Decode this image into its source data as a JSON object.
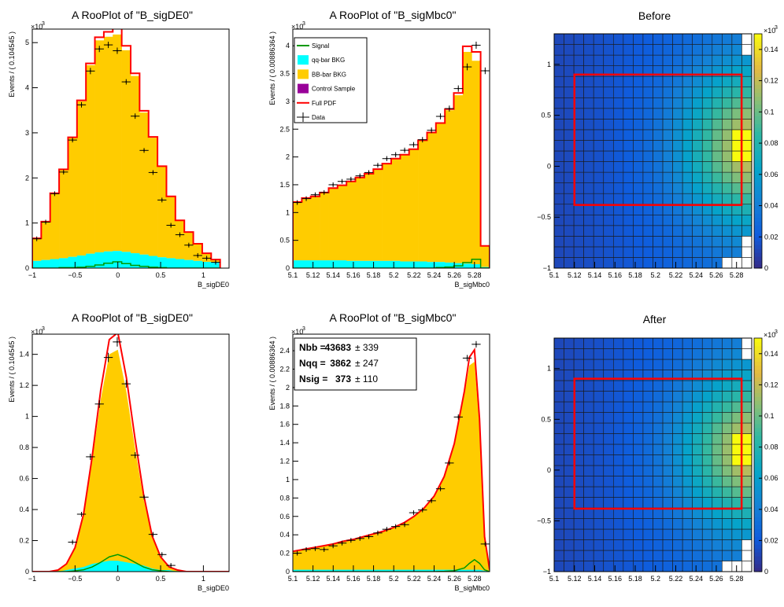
{
  "colors": {
    "signal": "#009900",
    "qq": "#00ffff",
    "bb": "#ffcc00",
    "control": "#990099",
    "pdf": "#ff0000",
    "data": "#000000",
    "box": "#ff0000"
  },
  "chart_data": [
    {
      "id": "de-before",
      "type": "histogram",
      "title": "A RooPlot of \"B_sigDE0\"",
      "xlabel": "B_sigDE0",
      "ylabel": "Events / ( 0.104545 )",
      "exponent_label": "×10",
      "exponent_sup": "3",
      "xlim": [
        -1.0,
        1.3
      ],
      "ylim": [
        0,
        5.3
      ],
      "xticks": [
        -1,
        -0.5,
        0,
        0.5,
        1
      ],
      "xtick_labels": [
        "−1",
        "−0.5",
        "0",
        "0.5",
        "1"
      ],
      "yticks": [
        0,
        1,
        2,
        3,
        4,
        5
      ],
      "ytick_labels": [
        "0",
        "1",
        "2",
        "3",
        "4",
        "5"
      ],
      "bin_edges": [
        -1.0,
        -0.8955,
        -0.7909,
        -0.6864,
        -0.5818,
        -0.4773,
        -0.3727,
        -0.2682,
        -0.1636,
        -0.0591,
        0.0455,
        0.15,
        0.2545,
        0.3591,
        0.4636,
        0.5682,
        0.6727,
        0.7773,
        0.8818,
        0.9864,
        1.0909,
        1.1955
      ],
      "stack_bb": [
        0.5,
        0.85,
        1.46,
        1.96,
        2.64,
        3.42,
        4.18,
        4.7,
        4.76,
        4.8,
        4.47,
        3.93,
        3.15,
        2.62,
        2.01,
        1.37,
        0.86,
        0.62,
        0.38,
        0.19,
        0.07
      ],
      "stack_qq": [
        0.16,
        0.18,
        0.2,
        0.22,
        0.25,
        0.28,
        0.32,
        0.35,
        0.37,
        0.38,
        0.36,
        0.33,
        0.3,
        0.27,
        0.24,
        0.22,
        0.2,
        0.18,
        0.16,
        0.14,
        0.12
      ],
      "signal": [
        0,
        0,
        0,
        0.01,
        0.01,
        0.02,
        0.04,
        0.07,
        0.11,
        0.14,
        0.1,
        0.06,
        0.04,
        0.02,
        0.01,
        0,
        0,
        0,
        0,
        0,
        0
      ],
      "data_x": [
        -0.9477,
        -0.8432,
        -0.7386,
        -0.6341,
        -0.5295,
        -0.425,
        -0.3205,
        -0.2159,
        -0.1114,
        -0.0068,
        0.0977,
        0.2023,
        0.3068,
        0.4114,
        0.5159,
        0.6205,
        0.725,
        0.8295,
        0.9341,
        1.0386,
        1.1432
      ],
      "data_y": [
        0.65,
        1.02,
        1.65,
        2.13,
        2.84,
        3.62,
        4.37,
        4.86,
        4.95,
        4.82,
        4.13,
        3.37,
        2.61,
        2.12,
        1.51,
        0.95,
        0.74,
        0.51,
        0.28,
        0.22,
        0.13
      ],
      "data_err": [
        0.03,
        0.03,
        0.04,
        0.05,
        0.05,
        0.06,
        0.07,
        0.07,
        0.07,
        0.07,
        0.06,
        0.06,
        0.05,
        0.05,
        0.04,
        0.03,
        0.03,
        0.02,
        0.02,
        0.02,
        0.01
      ]
    },
    {
      "id": "mbc-before",
      "type": "histogram",
      "title": "A RooPlot of \"B_sigMbc0\"",
      "xlabel": "B_sigMbc0",
      "ylabel": "Events / ( 0.00886364 )",
      "exponent_label": "×10",
      "exponent_sup": "3",
      "xlim": [
        5.1,
        5.295
      ],
      "ylim": [
        0,
        4.3
      ],
      "xticks": [
        5.1,
        5.12,
        5.14,
        5.16,
        5.18,
        5.2,
        5.22,
        5.24,
        5.26,
        5.28
      ],
      "xtick_labels": [
        "5.1",
        "5.12",
        "5.14",
        "5.16",
        "5.18",
        "5.2",
        "5.22",
        "5.24",
        "5.26",
        "5.28"
      ],
      "yticks": [
        0,
        0.5,
        1,
        1.5,
        2,
        2.5,
        3,
        3.5,
        4
      ],
      "ytick_labels": [
        "0",
        "0.5",
        "1",
        "1.5",
        "2",
        "2.5",
        "3",
        "3.5",
        "4"
      ],
      "bin_edges": [
        5.1,
        5.1089,
        5.1177,
        5.1266,
        5.1355,
        5.1443,
        5.1532,
        5.162,
        5.1709,
        5.1798,
        5.1886,
        5.1975,
        5.2064,
        5.2152,
        5.2241,
        5.233,
        5.2418,
        5.2507,
        5.2595,
        5.2684,
        5.2773,
        5.2861,
        5.295
      ],
      "stack_bb": [
        1.05,
        1.12,
        1.15,
        1.22,
        1.3,
        1.35,
        1.43,
        1.5,
        1.57,
        1.65,
        1.75,
        1.84,
        1.92,
        2.02,
        2.18,
        2.33,
        2.49,
        2.74,
        3.02,
        3.81,
        3.66,
        0.38
      ],
      "stack_qq": [
        0.14,
        0.14,
        0.14,
        0.14,
        0.14,
        0.14,
        0.13,
        0.13,
        0.13,
        0.13,
        0.13,
        0.13,
        0.12,
        0.12,
        0.12,
        0.11,
        0.11,
        0.1,
        0.09,
        0.08,
        0.07,
        0.02
      ],
      "signal": [
        0,
        0,
        0,
        0,
        0,
        0,
        0,
        0,
        0,
        0,
        0,
        0,
        0,
        0,
        0,
        0,
        0.01,
        0.02,
        0.04,
        0.1,
        0.16,
        0
      ],
      "data_x": [
        5.1044,
        5.1133,
        5.1222,
        5.131,
        5.1399,
        5.1488,
        5.1576,
        5.1665,
        5.1753,
        5.1842,
        5.1931,
        5.2019,
        5.2108,
        5.2197,
        5.2285,
        5.2374,
        5.2463,
        5.2551,
        5.264,
        5.2728,
        5.2817,
        5.2906
      ],
      "data_y": [
        1.18,
        1.25,
        1.32,
        1.36,
        1.5,
        1.56,
        1.6,
        1.66,
        1.72,
        1.85,
        1.97,
        2.04,
        2.12,
        2.22,
        2.31,
        2.48,
        2.73,
        2.87,
        3.23,
        3.62,
        4.01,
        3.55
      ],
      "data_err": [
        0.035,
        0.035,
        0.036,
        0.037,
        0.039,
        0.04,
        0.04,
        0.041,
        0.042,
        0.043,
        0.045,
        0.046,
        0.047,
        0.048,
        0.049,
        0.05,
        0.053,
        0.054,
        0.057,
        0.061,
        0.064,
        0.06
      ],
      "legend": {
        "placement": "top-left",
        "entries": [
          {
            "label": "Signal",
            "kind": "line",
            "color": "#009900"
          },
          {
            "label": "qq-bar BKG",
            "kind": "fill",
            "color": "#00ffff"
          },
          {
            "label": "BB-bar BKG",
            "kind": "fill",
            "color": "#ffcc00"
          },
          {
            "label": "Control Sample",
            "kind": "fill",
            "color": "#990099"
          },
          {
            "label": "Full PDF",
            "kind": "line",
            "color": "#ff0000"
          },
          {
            "label": "Data",
            "kind": "marker",
            "color": "#000000"
          }
        ]
      }
    },
    {
      "id": "map-before",
      "type": "heatmap",
      "title": "Before",
      "xlim": [
        5.1,
        5.295
      ],
      "ylim": [
        -1.0,
        1.3
      ],
      "xticks": [
        5.1,
        5.12,
        5.14,
        5.16,
        5.18,
        5.2,
        5.22,
        5.24,
        5.26,
        5.28
      ],
      "xtick_labels": [
        "5.1",
        "5.12",
        "5.14",
        "5.16",
        "5.18",
        "5.2",
        "5.22",
        "5.24",
        "5.26",
        "5.28"
      ],
      "yticks": [
        -1,
        -0.5,
        0,
        0.5,
        1
      ],
      "ytick_labels": [
        "−1",
        "−0.5",
        "0",
        "0.5",
        "1"
      ],
      "zlim": [
        0,
        0.15
      ],
      "zticks": [
        0,
        0.02,
        0.04,
        0.06,
        0.08,
        0.1,
        0.12,
        0.14
      ],
      "ztick_labels": [
        "0",
        "0.02",
        "0.04",
        "0.06",
        "0.08",
        "0.1",
        "0.12",
        "0.14"
      ],
      "z_exponent_label": "×10",
      "z_exponent_sup": "3",
      "nx": 20,
      "ny": 22,
      "box": {
        "x": [
          5.12,
          5.285
        ],
        "y": [
          -0.38,
          0.9
        ]
      }
    },
    {
      "id": "de-after",
      "type": "histogram",
      "title": "A RooPlot of \"B_sigDE0\"",
      "xlabel": "B_sigDE0",
      "ylabel": "Events / ( 0.104545 )",
      "exponent_label": "×10",
      "exponent_sup": "3",
      "xlim": [
        -1.0,
        1.3
      ],
      "ylim": [
        0,
        1.53
      ],
      "xticks": [
        -1,
        -0.5,
        0,
        0.5,
        1
      ],
      "xtick_labels": [
        "−1",
        "−0.5",
        "0",
        "0.5",
        "1"
      ],
      "yticks": [
        0,
        0.2,
        0.4,
        0.6,
        0.8,
        1,
        1.2,
        1.4
      ],
      "ytick_labels": [
        "0",
        "0.2",
        "0.4",
        "0.6",
        "0.8",
        "1",
        "1.2",
        "1.4"
      ],
      "curve_x": [
        -1.0,
        -0.9,
        -0.8,
        -0.7,
        -0.6,
        -0.5,
        -0.4,
        -0.3,
        -0.2,
        -0.1,
        0.0,
        0.1,
        0.2,
        0.3,
        0.4,
        0.5,
        0.6,
        0.7,
        0.8,
        0.9,
        1.0,
        1.1,
        1.2,
        1.3
      ],
      "curve_bb": [
        0,
        0,
        0,
        0.01,
        0.04,
        0.13,
        0.33,
        0.66,
        1.05,
        1.33,
        1.36,
        1.1,
        0.75,
        0.43,
        0.2,
        0.08,
        0.02,
        0.01,
        0,
        0,
        0,
        0,
        0,
        0
      ],
      "curve_qq": [
        0,
        0,
        0,
        0,
        0.01,
        0.02,
        0.03,
        0.05,
        0.06,
        0.07,
        0.07,
        0.06,
        0.05,
        0.04,
        0.02,
        0.01,
        0.01,
        0,
        0,
        0,
        0,
        0,
        0,
        0
      ],
      "curve_sig": [
        0,
        0,
        0,
        0,
        0,
        0.005,
        0.012,
        0.03,
        0.06,
        0.095,
        0.11,
        0.09,
        0.06,
        0.03,
        0.012,
        0.005,
        0,
        0,
        0,
        0,
        0,
        0,
        0,
        0
      ],
      "data_x": [
        -0.5295,
        -0.425,
        -0.3205,
        -0.2159,
        -0.1114,
        -0.0068,
        0.0977,
        0.2023,
        0.3068,
        0.4114,
        0.5159,
        0.6205
      ],
      "data_y": [
        0.19,
        0.37,
        0.74,
        1.08,
        1.38,
        1.48,
        1.21,
        0.75,
        0.48,
        0.24,
        0.11,
        0.04
      ],
      "data_err": [
        0.01,
        0.015,
        0.02,
        0.025,
        0.03,
        0.03,
        0.025,
        0.02,
        0.015,
        0.01,
        0.008,
        0.005
      ]
    },
    {
      "id": "mbc-after",
      "type": "histogram",
      "title": "A RooPlot of \"B_sigMbc0\"",
      "xlabel": "B_sigMbc0",
      "ylabel": "Events / ( 0.00886364 )",
      "exponent_label": "×10",
      "exponent_sup": "3",
      "xlim": [
        5.1,
        5.295
      ],
      "ylim": [
        0,
        2.58
      ],
      "xticks": [
        5.1,
        5.12,
        5.14,
        5.16,
        5.18,
        5.2,
        5.22,
        5.24,
        5.26,
        5.28
      ],
      "xtick_labels": [
        "5.1",
        "5.12",
        "5.14",
        "5.16",
        "5.18",
        "5.2",
        "5.22",
        "5.24",
        "5.26",
        "5.28"
      ],
      "yticks": [
        0,
        0.2,
        0.4,
        0.6,
        0.8,
        1,
        1.2,
        1.4,
        1.6,
        1.8,
        2,
        2.2,
        2.4
      ],
      "ytick_labels": [
        "0",
        "0.2",
        "0.4",
        "0.6",
        "0.8",
        "1",
        "1.2",
        "1.4",
        "1.6",
        "1.8",
        "2",
        "2.2",
        "2.4"
      ],
      "curve_x": [
        5.1,
        5.11,
        5.12,
        5.13,
        5.14,
        5.15,
        5.16,
        5.17,
        5.18,
        5.19,
        5.2,
        5.21,
        5.22,
        5.23,
        5.24,
        5.25,
        5.26,
        5.27,
        5.275,
        5.28,
        5.285,
        5.29,
        5.295
      ],
      "curve_bb": [
        0.2,
        0.22,
        0.24,
        0.26,
        0.28,
        0.31,
        0.33,
        0.36,
        0.39,
        0.42,
        0.46,
        0.51,
        0.58,
        0.67,
        0.8,
        1.01,
        1.36,
        1.9,
        2.22,
        2.26,
        1.55,
        0.35,
        0.02
      ],
      "curve_qq": [
        0.02,
        0.02,
        0.02,
        0.02,
        0.02,
        0.02,
        0.02,
        0.02,
        0.02,
        0.02,
        0.02,
        0.02,
        0.02,
        0.02,
        0.02,
        0.02,
        0.02,
        0.02,
        0.02,
        0.02,
        0.02,
        0.01,
        0
      ],
      "curve_sig": [
        0,
        0,
        0,
        0,
        0,
        0,
        0,
        0,
        0,
        0,
        0,
        0,
        0,
        0,
        0,
        0.003,
        0.01,
        0.04,
        0.09,
        0.13,
        0.09,
        0.02,
        0
      ],
      "data_x": [
        5.1044,
        5.1133,
        5.1222,
        5.131,
        5.1399,
        5.1488,
        5.1576,
        5.1665,
        5.1753,
        5.1842,
        5.1931,
        5.2019,
        5.2108,
        5.2197,
        5.2285,
        5.2374,
        5.2463,
        5.2551,
        5.264,
        5.2728,
        5.2817,
        5.2906
      ],
      "data_y": [
        0.2,
        0.24,
        0.25,
        0.24,
        0.28,
        0.31,
        0.34,
        0.36,
        0.38,
        0.42,
        0.46,
        0.49,
        0.51,
        0.64,
        0.67,
        0.77,
        0.9,
        1.18,
        1.68,
        2.32,
        2.47,
        0.3
      ],
      "data_err": [
        0.01,
        0.011,
        0.011,
        0.011,
        0.012,
        0.012,
        0.013,
        0.013,
        0.014,
        0.014,
        0.015,
        0.016,
        0.016,
        0.018,
        0.018,
        0.02,
        0.021,
        0.024,
        0.028,
        0.034,
        0.035,
        0.012
      ],
      "stats": [
        {
          "label": "Nbb =",
          "value": "43683",
          "pm": "± 339"
        },
        {
          "label": "Nqq =",
          "value": "3862",
          "pm": "± 247"
        },
        {
          "label": "Nsig =",
          "value": "373",
          "pm": "± 110"
        }
      ]
    },
    {
      "id": "map-after",
      "type": "heatmap",
      "title": "After",
      "xlim": [
        5.1,
        5.295
      ],
      "ylim": [
        -1.0,
        1.3
      ],
      "xticks": [
        5.1,
        5.12,
        5.14,
        5.16,
        5.18,
        5.2,
        5.22,
        5.24,
        5.26,
        5.28
      ],
      "xtick_labels": [
        "5.1",
        "5.12",
        "5.14",
        "5.16",
        "5.18",
        "5.2",
        "5.22",
        "5.24",
        "5.26",
        "5.28"
      ],
      "yticks": [
        -1,
        -0.5,
        0,
        0.5,
        1
      ],
      "ytick_labels": [
        "−1",
        "−0.5",
        "0",
        "0.5",
        "1"
      ],
      "zlim": [
        0,
        0.15
      ],
      "zticks": [
        0,
        0.02,
        0.04,
        0.06,
        0.08,
        0.1,
        0.12,
        0.14
      ],
      "ztick_labels": [
        "0",
        "0.02",
        "0.04",
        "0.06",
        "0.08",
        "0.1",
        "0.12",
        "0.14"
      ],
      "z_exponent_label": "×10",
      "z_exponent_sup": "3",
      "nx": 20,
      "ny": 22,
      "box": {
        "x": [
          5.12,
          5.285
        ],
        "y": [
          -0.38,
          0.9
        ]
      }
    }
  ]
}
